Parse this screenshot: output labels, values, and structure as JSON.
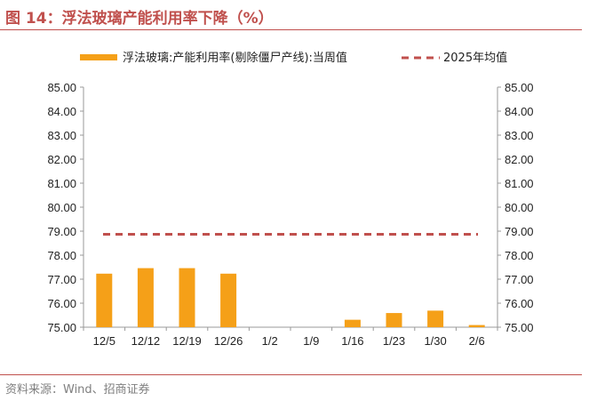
{
  "figure": {
    "title": "图 14：浮法玻璃产能利用率下降（%）",
    "source": "资料来源：Wind、招商证券"
  },
  "colors": {
    "bar": "#f5a018",
    "reference": "#c0504d",
    "title": "#c0504d",
    "rule": "#c0504d",
    "axis": "#999999"
  },
  "chart_data": {
    "type": "bar",
    "title": "",
    "xlabel": "",
    "ylabel": "",
    "categories": [
      "12/5",
      "12/12",
      "12/19",
      "12/26",
      "1/2",
      "1/9",
      "1/16",
      "1/23",
      "1/30",
      "2/6"
    ],
    "series": [
      {
        "name": "浮法玻璃:产能利用率(剔除僵尸产线):当周值",
        "type": "bar",
        "values": [
          77.23,
          77.46,
          77.46,
          77.23,
          null,
          null,
          75.31,
          75.59,
          75.69,
          75.09
        ]
      },
      {
        "name": "2025年均值",
        "type": "line-dashed",
        "value": 78.87
      }
    ],
    "ylim": [
      75.0,
      85.0
    ],
    "yticks": [
      "75.00",
      "76.00",
      "77.00",
      "78.00",
      "79.00",
      "80.00",
      "81.00",
      "82.00",
      "83.00",
      "84.00",
      "85.00"
    ],
    "secondary_yticks": [
      "75.00",
      "76.00",
      "77.00",
      "78.00",
      "79.00",
      "80.00",
      "81.00",
      "82.00",
      "83.00",
      "84.00",
      "85.00"
    ],
    "grid": false,
    "legend": "top"
  }
}
